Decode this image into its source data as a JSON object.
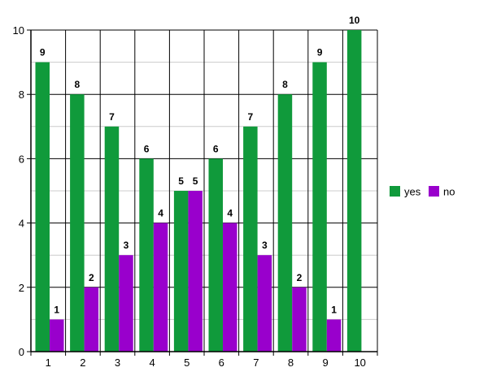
{
  "chart_data": {
    "type": "bar",
    "categories": [
      "1",
      "2",
      "3",
      "4",
      "5",
      "6",
      "7",
      "8",
      "9",
      "10"
    ],
    "series": [
      {
        "name": "yes",
        "color": "#109a3b",
        "values": [
          9,
          8,
          7,
          6,
          5,
          6,
          7,
          8,
          9,
          10
        ]
      },
      {
        "name": "no",
        "color": "#9900cc",
        "values": [
          1,
          2,
          3,
          4,
          5,
          4,
          3,
          2,
          1,
          null
        ]
      }
    ],
    "ylim": [
      0,
      10
    ],
    "yticks": [
      0,
      2,
      4,
      6,
      8,
      10
    ],
    "minor_grid_step": 1,
    "grid": true,
    "legend_position": "right",
    "data_labels": true
  }
}
